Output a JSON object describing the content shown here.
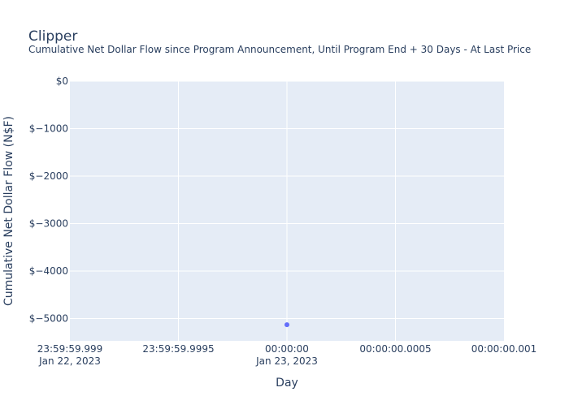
{
  "chart_data": {
    "type": "scatter",
    "title": "Clipper",
    "subtitle": "Cumulative Net Dollar Flow since Program Announcement, Until Program End + 30 Days - At Last Price",
    "xlabel": "Day",
    "ylabel": "Cumulative Net Dollar Flow (N$F)",
    "x_ticks": [
      {
        "line1": "23:59:59.999",
        "line2": "Jan 22, 2023"
      },
      {
        "line1": "23:59:59.9995",
        "line2": ""
      },
      {
        "line1": "00:00:00",
        "line2": "Jan 23, 2023"
      },
      {
        "line1": "00:00:00.0005",
        "line2": ""
      },
      {
        "line1": "00:00:00.001",
        "line2": ""
      }
    ],
    "y_ticks": [
      {
        "value": 0,
        "label": "$0"
      },
      {
        "value": -1000,
        "label": "$−1000"
      },
      {
        "value": -2000,
        "label": "$−2000"
      },
      {
        "value": -3000,
        "label": "$−3000"
      },
      {
        "value": -4000,
        "label": "$−4000"
      },
      {
        "value": -5000,
        "label": "$−5000"
      }
    ],
    "ylim": [
      -5470,
      0
    ],
    "points": [
      {
        "x": "2023-01-23 00:00:00",
        "y": -5130
      }
    ],
    "grid": true,
    "colors": {
      "plot_bg": "#e5ecf6",
      "grid": "#ffffff",
      "marker": "#636efa",
      "text": "#2a3f5f"
    }
  }
}
